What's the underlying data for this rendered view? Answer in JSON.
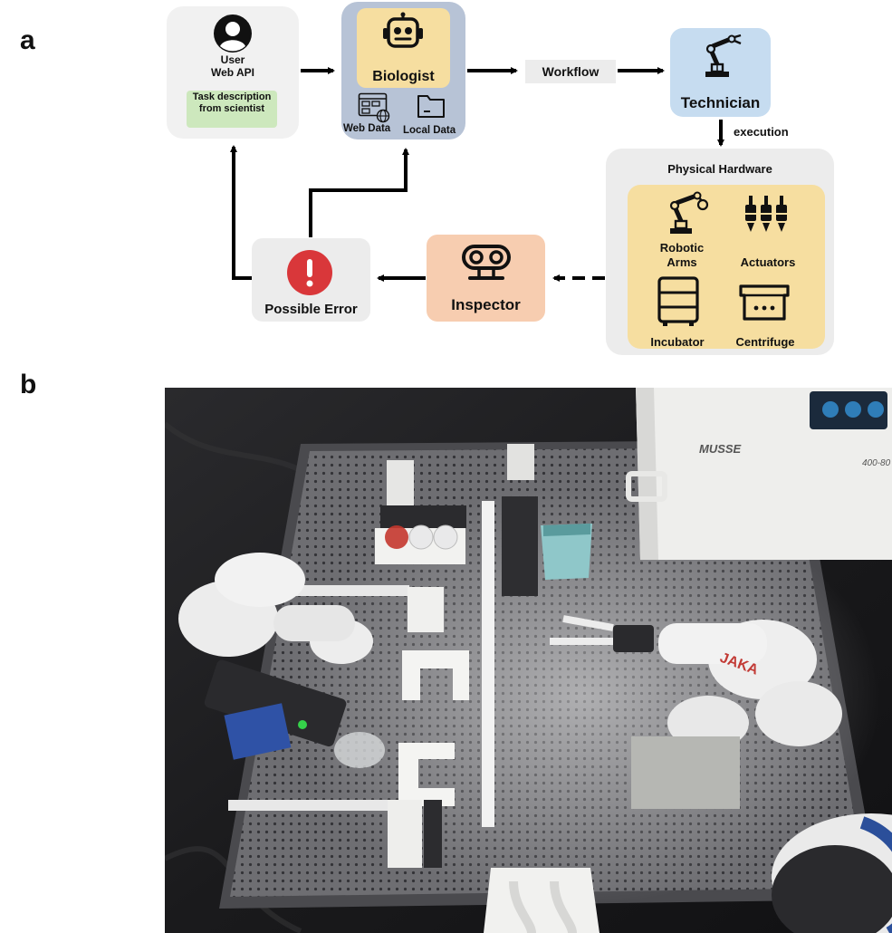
{
  "panel_a_label": "a",
  "panel_b_label": "b",
  "user_box": {
    "line1": "User",
    "line2": "Web API",
    "task_label": "Task description from scientist"
  },
  "biologist": {
    "title": "Biologist",
    "web_data": "Web Data",
    "local_data": "Local Data"
  },
  "workflow_label": "Workflow",
  "technician": {
    "title": "Technician"
  },
  "execution_label": "execution",
  "hardware": {
    "title": "Physical Hardware",
    "robotic_arms": "Robotic Arms",
    "actuators": "Actuators",
    "incubator": "Incubator",
    "centrifuge": "Centrifuge"
  },
  "inspector": {
    "title": "Inspector"
  },
  "possible_error": {
    "title": "Possible Error"
  },
  "photo_text": {
    "incubator_brand": "MUSSE",
    "incubator_model": "400-80"
  },
  "colors": {
    "user_bg": "#f1f1f1",
    "task_bg": "#cde8bd",
    "biologist_outer": "#b7c3d6",
    "biologist_inner": "#f6dea0",
    "workflow_bg": "#ececec",
    "technician_bg": "#c6dcf0",
    "hardware_outer": "#ececec",
    "hardware_inner": "#f6dea0",
    "inspector_bg": "#f7cdb0",
    "error_bg": "#ececec",
    "error_red": "#d9373a"
  }
}
